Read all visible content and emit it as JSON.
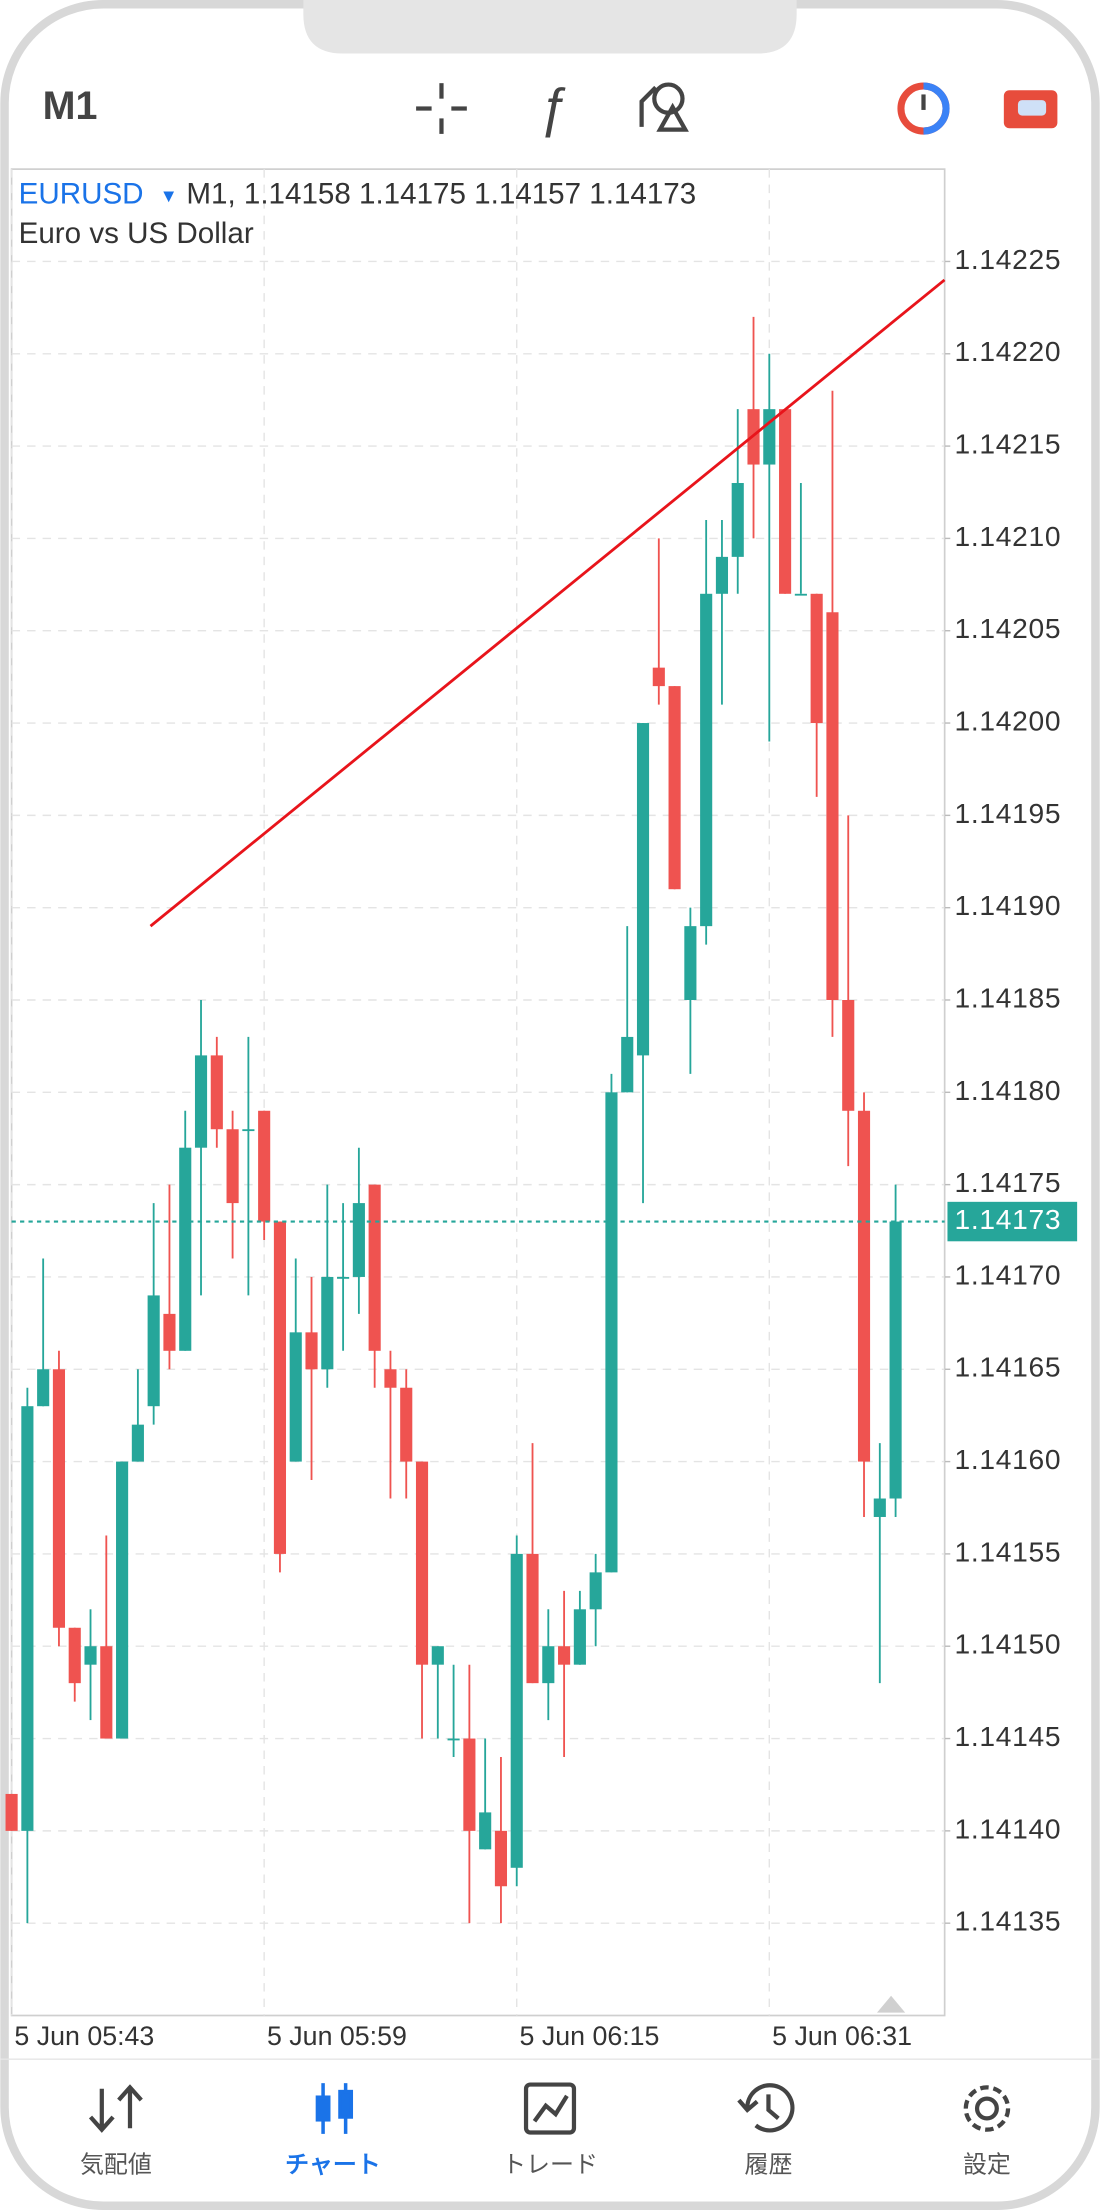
{
  "toolbar": {
    "timeframe": "M1"
  },
  "tabs": [
    "気配値",
    "チャート",
    "トレード",
    "履歴",
    "設定"
  ],
  "chart_data": {
    "type": "candlestick",
    "symbol": "EURUSD",
    "ohlc_text": "M1, 1.14158 1.14175 1.14157 1.14173",
    "description": "Euro vs US Dollar",
    "categories": [
      "5 Jun 05:43",
      null,
      null,
      null,
      null,
      null,
      null,
      null,
      null,
      null,
      null,
      null,
      null,
      null,
      null,
      null,
      "5 Jun 05:59",
      null,
      null,
      null,
      null,
      null,
      null,
      null,
      null,
      null,
      null,
      null,
      null,
      null,
      null,
      null,
      "5 Jun 06:15",
      null,
      null,
      null,
      null,
      null,
      null,
      null,
      null,
      null,
      null,
      null,
      null,
      null,
      null,
      null,
      "5 Jun 06:31",
      null,
      null,
      null,
      null,
      null,
      null,
      null,
      null
    ],
    "open": [
      1.14142,
      1.1414,
      1.14163,
      1.14165,
      1.14151,
      1.14149,
      1.1415,
      1.14145,
      1.1416,
      1.14163,
      1.14168,
      1.14166,
      1.14177,
      1.14182,
      1.14178,
      1.14178,
      1.14179,
      1.14173,
      1.1416,
      1.14167,
      1.14165,
      1.1417,
      1.1417,
      1.14175,
      1.14165,
      1.14164,
      1.1416,
      1.14149,
      1.14145,
      1.14145,
      1.14139,
      1.1414,
      1.14138,
      1.14155,
      1.14148,
      1.1415,
      1.14149,
      1.14152,
      1.14154,
      1.1418,
      1.14182,
      1.14203,
      1.14202,
      1.14185,
      1.14189,
      1.14207,
      1.14209,
      1.14217,
      1.14214,
      1.14217,
      1.14207,
      1.14207,
      1.14206,
      1.14185,
      1.14179,
      1.14157,
      1.14158
    ],
    "high": [
      1.14142,
      1.14164,
      1.14171,
      1.14166,
      1.14151,
      1.14152,
      1.14156,
      1.1416,
      1.14165,
      1.14174,
      1.14175,
      1.14179,
      1.14185,
      1.14183,
      1.14179,
      1.14183,
      1.14179,
      1.14173,
      1.14171,
      1.1417,
      1.14175,
      1.14174,
      1.14177,
      1.14175,
      1.14166,
      1.14165,
      1.1416,
      1.1415,
      1.14149,
      1.14149,
      1.14145,
      1.14144,
      1.14156,
      1.14161,
      1.14152,
      1.14153,
      1.14153,
      1.14155,
      1.14181,
      1.14189,
      1.142,
      1.1421,
      1.14202,
      1.1419,
      1.14211,
      1.14211,
      1.14217,
      1.14222,
      1.1422,
      1.14217,
      1.14213,
      1.14207,
      1.14218,
      1.14195,
      1.1418,
      1.14161,
      1.14175
    ],
    "low": [
      1.1414,
      1.14135,
      1.14163,
      1.1415,
      1.14147,
      1.14146,
      1.14145,
      1.14145,
      1.1416,
      1.14162,
      1.14165,
      1.14166,
      1.14169,
      1.14177,
      1.14171,
      1.14169,
      1.14172,
      1.14154,
      1.1416,
      1.14159,
      1.14164,
      1.14166,
      1.14168,
      1.14164,
      1.14158,
      1.14158,
      1.14145,
      1.14145,
      1.14144,
      1.14135,
      1.14139,
      1.14135,
      1.14137,
      1.14148,
      1.14146,
      1.14144,
      1.14149,
      1.1415,
      1.14154,
      1.1418,
      1.14174,
      1.14201,
      1.14191,
      1.14181,
      1.14188,
      1.14201,
      1.14207,
      1.1421,
      1.14199,
      1.14207,
      1.14207,
      1.14196,
      1.14183,
      1.14176,
      1.14157,
      1.14148,
      1.14157
    ],
    "close": [
      1.1414,
      1.14163,
      1.14165,
      1.14151,
      1.14148,
      1.1415,
      1.14145,
      1.1416,
      1.14162,
      1.14169,
      1.14166,
      1.14177,
      1.14182,
      1.14178,
      1.14174,
      1.14178,
      1.14173,
      1.14155,
      1.14167,
      1.14165,
      1.1417,
      1.1417,
      1.14174,
      1.14166,
      1.14164,
      1.1416,
      1.14149,
      1.1415,
      1.14145,
      1.1414,
      1.14141,
      1.14137,
      1.14155,
      1.14148,
      1.1415,
      1.14149,
      1.14152,
      1.14154,
      1.1418,
      1.14183,
      1.142,
      1.14202,
      1.14191,
      1.14189,
      1.14207,
      1.14209,
      1.14213,
      1.14214,
      1.14217,
      1.14207,
      1.14207,
      1.142,
      1.14185,
      1.14179,
      1.1416,
      1.14158,
      1.14173
    ],
    "up_color": "#26a69a",
    "down_color": "#ef5350",
    "trendline": {
      "x": [
        8.8,
        59.1
      ],
      "y": [
        1.14189,
        1.14224
      ],
      "color": "#e8141b"
    },
    "last_price": 1.14173,
    "ylim": [
      1.1413,
      1.1423
    ],
    "yticks": [
      {
        "value": 1.14135,
        "label": "1.14135"
      },
      {
        "value": 1.1414,
        "label": "1.14140"
      },
      {
        "value": 1.14145,
        "label": "1.14145"
      },
      {
        "value": 1.1415,
        "label": "1.14150"
      },
      {
        "value": 1.14155,
        "label": "1.14155"
      },
      {
        "value": 1.1416,
        "label": "1.14160"
      },
      {
        "value": 1.14165,
        "label": "1.14165"
      },
      {
        "value": 1.1417,
        "label": "1.14170"
      },
      {
        "value": 1.14175,
        "label": "1.14175"
      },
      {
        "value": 1.1418,
        "label": "1.14180"
      },
      {
        "value": 1.14185,
        "label": "1.14185"
      },
      {
        "value": 1.1419,
        "label": "1.14190"
      },
      {
        "value": 1.14195,
        "label": "1.14195"
      },
      {
        "value": 1.142,
        "label": "1.14200"
      },
      {
        "value": 1.14205,
        "label": "1.14205"
      },
      {
        "value": 1.1421,
        "label": "1.14210"
      },
      {
        "value": 1.14215,
        "label": "1.14215"
      },
      {
        "value": 1.1422,
        "label": "1.14220"
      },
      {
        "value": 1.14225,
        "label": "1.14225"
      }
    ],
    "grid": true
  }
}
